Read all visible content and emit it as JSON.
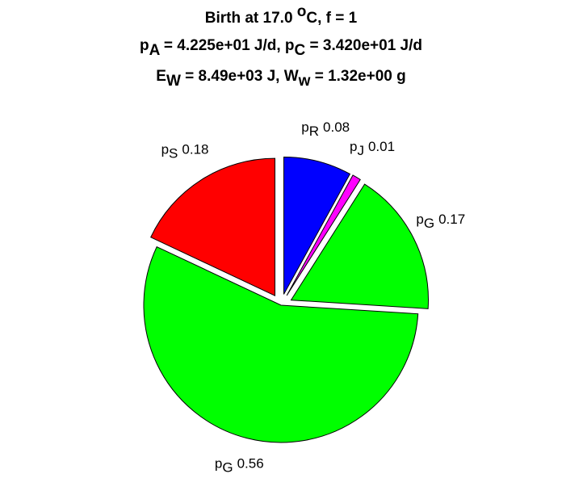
{
  "chart_data": {
    "type": "pie",
    "title": [
      [
        {
          "text": "Birth at 17.0 "
        },
        {
          "text": "o",
          "script": "sup"
        },
        {
          "text": "C, f = 1"
        }
      ],
      [
        {
          "text": "p"
        },
        {
          "text": "A",
          "script": "sub"
        },
        {
          "text": " = 4.225e+01 J/d, p"
        },
        {
          "text": "C",
          "script": "sub"
        },
        {
          "text": " = 3.420e+01 J/d"
        }
      ],
      [
        {
          "text": "E"
        },
        {
          "text": "W",
          "script": "sub"
        },
        {
          "text": " = 8.49e+03 J, W"
        },
        {
          "text": "w",
          "script": "sub"
        },
        {
          "text": " = 1.32e+00 g"
        }
      ]
    ],
    "categories": [
      [
        {
          "text": "p"
        },
        {
          "text": "R",
          "script": "sub"
        }
      ],
      [
        {
          "text": "p"
        },
        {
          "text": "J",
          "script": "sub"
        }
      ],
      [
        {
          "text": "p"
        },
        {
          "text": "G",
          "script": "sub"
        }
      ],
      [
        {
          "text": "p"
        },
        {
          "text": "G",
          "script": "sub"
        }
      ],
      [
        {
          "text": "p"
        },
        {
          "text": "S",
          "script": "sub"
        }
      ]
    ],
    "values": [
      0.08,
      0.01,
      0.17,
      0.56,
      0.18
    ],
    "colors": [
      "#0000ff",
      "#ff00ff",
      "#00ff00",
      "#00ff00",
      "#ff0000"
    ],
    "explode": [
      1,
      1,
      1,
      0,
      1
    ]
  }
}
